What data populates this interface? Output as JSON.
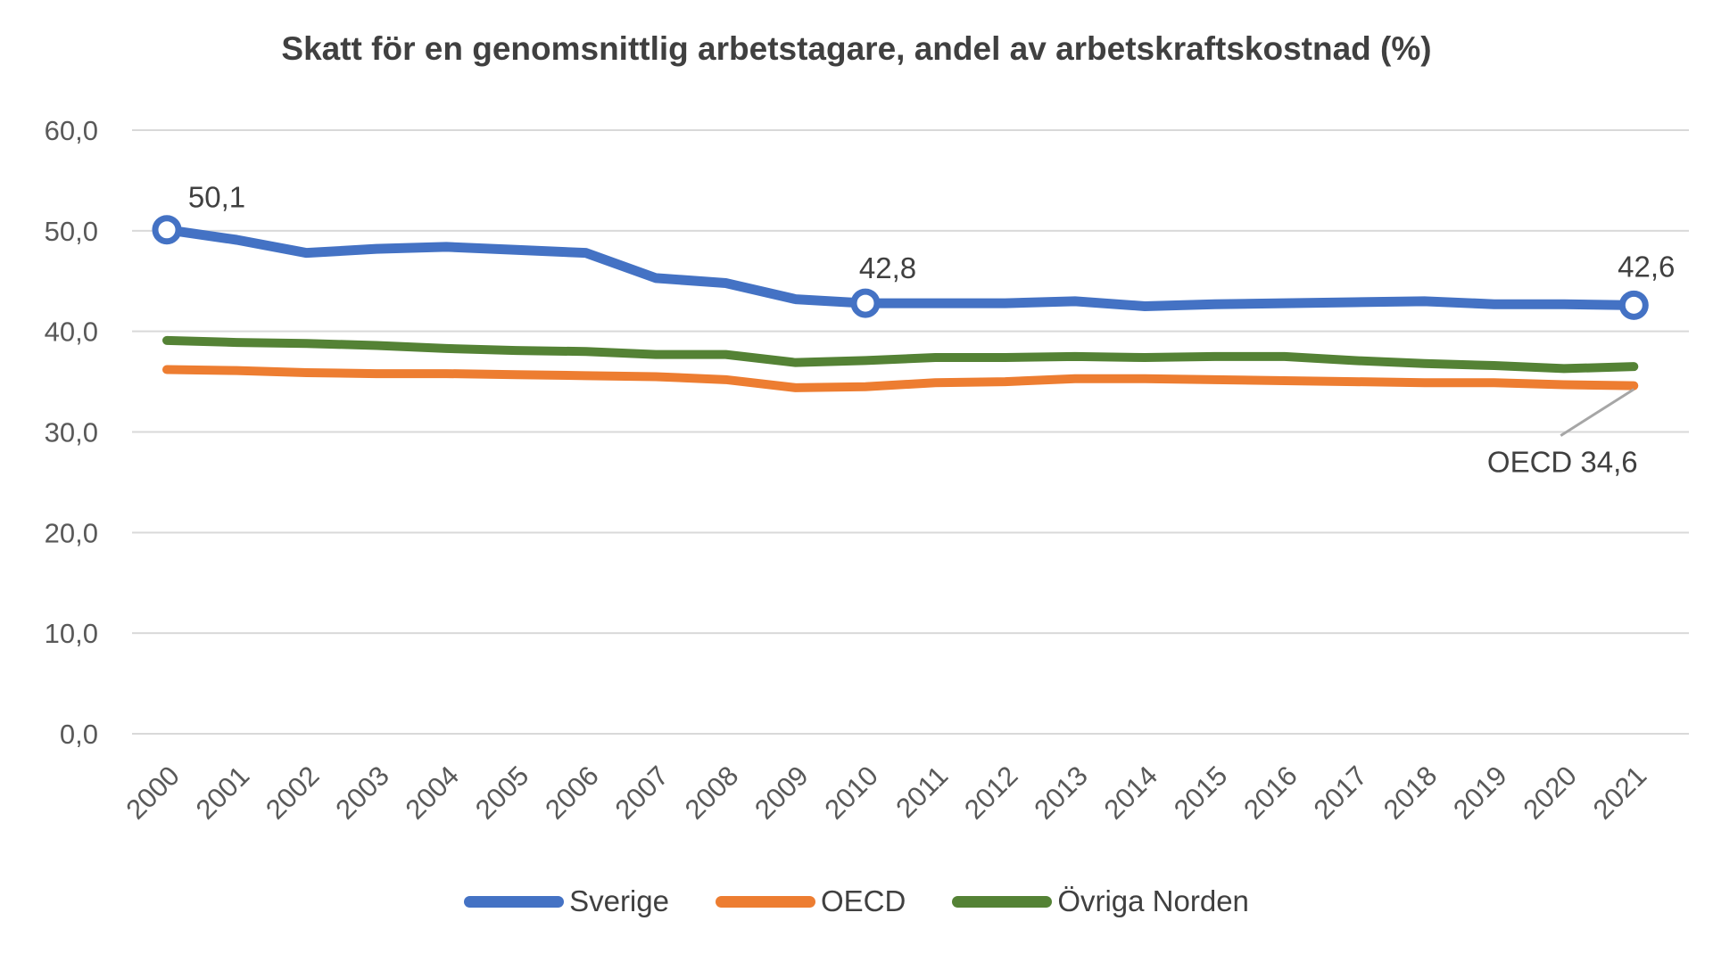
{
  "chart_data": {
    "type": "line",
    "title": "Skatt för en genomsnittlig arbetstagare, andel av arbetskraftskostnad (%)",
    "categories": [
      2000,
      2001,
      2002,
      2003,
      2004,
      2005,
      2006,
      2007,
      2008,
      2009,
      2010,
      2011,
      2012,
      2013,
      2014,
      2015,
      2016,
      2017,
      2018,
      2019,
      2020,
      2021
    ],
    "series": [
      {
        "name": "Sverige",
        "color": "#4472C4",
        "values": [
          50.1,
          49.1,
          47.8,
          48.2,
          48.4,
          48.1,
          47.8,
          45.3,
          44.8,
          43.2,
          42.8,
          42.8,
          42.8,
          43.0,
          42.5,
          42.7,
          42.8,
          42.9,
          43.0,
          42.7,
          42.7,
          42.6
        ]
      },
      {
        "name": "OECD",
        "color": "#ED7D31",
        "values": [
          36.2,
          36.1,
          35.9,
          35.8,
          35.8,
          35.7,
          35.6,
          35.5,
          35.2,
          34.4,
          34.5,
          34.9,
          35.0,
          35.3,
          35.3,
          35.2,
          35.1,
          35.0,
          34.9,
          34.9,
          34.7,
          34.6
        ]
      },
      {
        "name": "Övriga Norden",
        "color": "#548235",
        "values": [
          39.1,
          38.9,
          38.8,
          38.6,
          38.3,
          38.1,
          38.0,
          37.7,
          37.7,
          36.9,
          37.1,
          37.4,
          37.4,
          37.5,
          37.4,
          37.5,
          37.5,
          37.1,
          36.8,
          36.6,
          36.3,
          36.5
        ]
      }
    ],
    "ylim": [
      0,
      60
    ],
    "y_ticks": [
      "0,0",
      "10,0",
      "20,0",
      "30,0",
      "40,0",
      "50,0",
      "60,0"
    ],
    "grid": true,
    "legend_position": "bottom",
    "xlabel": "",
    "ylabel": "",
    "point_labels": [
      {
        "series": "Sverige",
        "year": 2000,
        "text": "50,1"
      },
      {
        "series": "Sverige",
        "year": 2010,
        "text": "42,8"
      },
      {
        "series": "Sverige",
        "year": 2021,
        "text": "42,6"
      }
    ],
    "annotation": {
      "text": "OECD 34,6",
      "series": "OECD",
      "year": 2021
    }
  },
  "legend": {
    "items": [
      {
        "label": "Sverige",
        "color": "#4472C4"
      },
      {
        "label": "OECD",
        "color": "#ED7D31"
      },
      {
        "label": "Övriga Norden",
        "color": "#548235"
      }
    ]
  },
  "colors": {
    "gridline": "#d9d9d9",
    "axis_text": "#595959",
    "title_text": "#404040",
    "leader_line": "#a6a6a6",
    "background": "#ffffff"
  }
}
